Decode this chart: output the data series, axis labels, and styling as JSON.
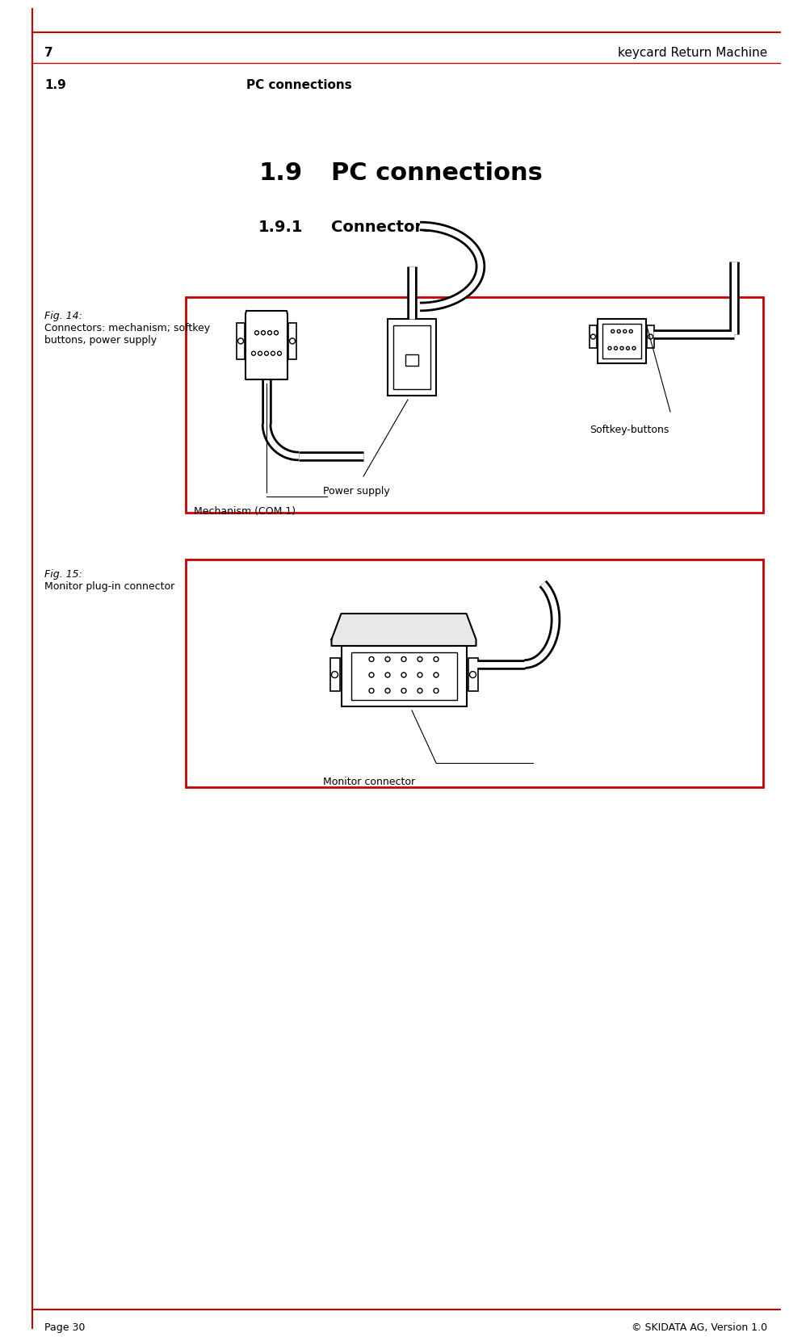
{
  "page_number": "Page 30",
  "copyright": "© SKIDATA AG, Version 1.0",
  "header_left_bold": "7",
  "header_right": "keycard Return Machine",
  "header_section_bold": "1.9",
  "header_section_text": "PC connections",
  "title_number": "1.9",
  "title_text": "PC connections",
  "subtitle_number": "1.9.1",
  "subtitle_text": "Connectors",
  "fig14_label": "Fig. 14:",
  "fig14_caption": "Connectors: mechanism; softkey\nbuttons, power supply",
  "fig15_label": "Fig. 15:",
  "fig15_caption": "Monitor plug-in connector",
  "fig14_annotations": [
    "Mechanism (COM 1)",
    "Power supply",
    "Softkey-buttons"
  ],
  "fig15_annotation": "Monitor connector",
  "red_color": "#CC0000",
  "black_color": "#000000",
  "white_color": "#FFFFFF",
  "bg_color": "#FFFFFF"
}
